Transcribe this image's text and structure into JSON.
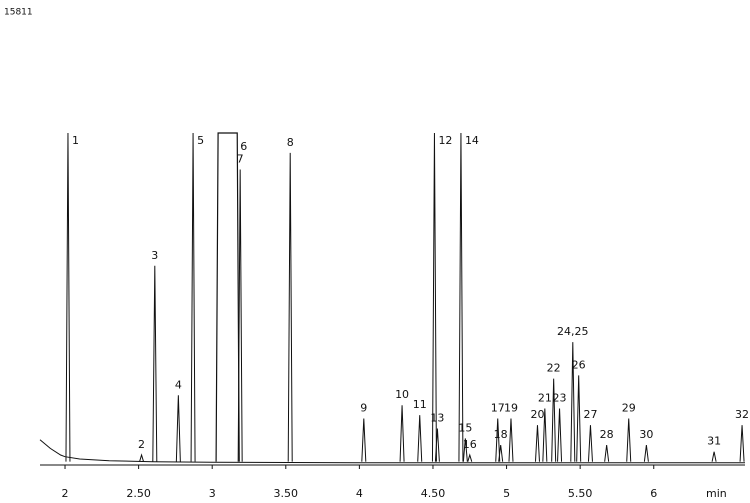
{
  "chart_data": {
    "type": "line",
    "scale_label": "15811",
    "x_label": "min",
    "xlim": [
      1.83,
      6.62
    ],
    "ylim": [
      0,
      100
    ],
    "xticks": [
      2,
      {
        "value": 2.5,
        "label": "2.50"
      },
      3,
      {
        "value": 3.5,
        "label": "3.50"
      },
      4,
      {
        "value": 4.5,
        "label": "4.50"
      },
      5,
      {
        "value": 5.5,
        "label": "5.50"
      },
      6
    ],
    "color": "#111111",
    "baseline": {
      "x": [
        1.83,
        1.9,
        1.97,
        2.0,
        2.1,
        2.3,
        2.6,
        3,
        4,
        5,
        6,
        6.62
      ],
      "values": [
        7.6,
        5,
        3,
        2.5,
        1.8,
        1.3,
        1,
        0.8,
        0.7,
        0.7,
        0.7,
        0.7
      ]
    },
    "peaks": [
      {
        "label": "1",
        "x": 2.02,
        "height": 100
      },
      {
        "label": "2",
        "x": 2.52,
        "height": 3
      },
      {
        "label": "3",
        "x": 2.61,
        "height": 60
      },
      {
        "label": "4",
        "x": 2.77,
        "height": 21
      },
      {
        "label": "5",
        "x": 2.87,
        "height": 100
      },
      {
        "label": "6",
        "x": 3.04,
        "x_end": 3.17,
        "height": 100
      },
      {
        "label": "7",
        "x": 3.19,
        "height": 89
      },
      {
        "label": "8",
        "x": 3.53,
        "height": 94
      },
      {
        "label": "9",
        "x": 4.03,
        "height": 14
      },
      {
        "label": "10",
        "x": 4.29,
        "height": 18
      },
      {
        "label": "11",
        "x": 4.41,
        "height": 15
      },
      {
        "label": "12",
        "x": 4.51,
        "height": 100
      },
      {
        "label": "13",
        "x": 4.53,
        "height": 11
      },
      {
        "label": "14",
        "x": 4.69,
        "height": 100
      },
      {
        "label": "15",
        "x": 4.72,
        "height": 8
      },
      {
        "label": "16",
        "x": 4.75,
        "height": 3
      },
      {
        "label": "17",
        "x": 4.94,
        "height": 14
      },
      {
        "label": "18",
        "x": 4.96,
        "height": 6
      },
      {
        "label": "19",
        "x": 5.03,
        "height": 14
      },
      {
        "label": "20",
        "x": 5.21,
        "height": 12
      },
      {
        "label": "21",
        "x": 5.26,
        "height": 17
      },
      {
        "label": "22",
        "x": 5.32,
        "height": 26
      },
      {
        "label": "23",
        "x": 5.36,
        "height": 17
      },
      {
        "label": "24,25",
        "x": 5.45,
        "height": 37
      },
      {
        "label": "26",
        "x": 5.49,
        "height": 27
      },
      {
        "label": "27",
        "x": 5.57,
        "height": 12
      },
      {
        "label": "28",
        "x": 5.68,
        "height": 6
      },
      {
        "label": "29",
        "x": 5.83,
        "height": 14
      },
      {
        "label": "30",
        "x": 5.95,
        "height": 6
      },
      {
        "label": "31",
        "x": 6.41,
        "height": 4
      },
      {
        "label": "32",
        "x": 6.6,
        "height": 12
      }
    ]
  }
}
